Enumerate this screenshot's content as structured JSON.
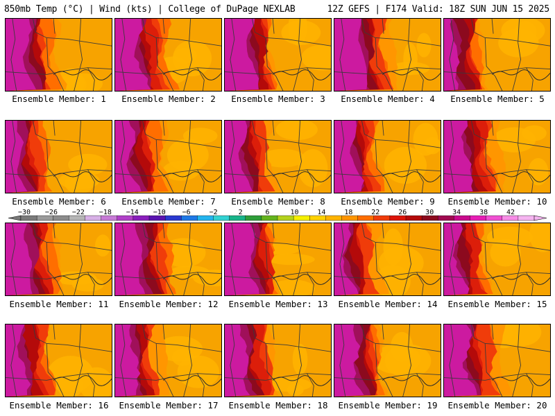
{
  "header": {
    "left": "850mb Temp (°C) | Wind (kts) | College of DuPage NEXLAB",
    "right": "12Z GEFS | F174 Valid: 18Z SUN JUN 15 2025"
  },
  "members": [
    "Ensemble Member: 1",
    "Ensemble Member: 2",
    "Ensemble Member: 3",
    "Ensemble Member: 4",
    "Ensemble Member: 5",
    "Ensemble Member: 6",
    "Ensemble Member: 7",
    "Ensemble Member: 8",
    "Ensemble Member: 9",
    "Ensemble Member: 10",
    "Ensemble Member: 11",
    "Ensemble Member: 12",
    "Ensemble Member: 13",
    "Ensemble Member: 14",
    "Ensemble Member: 15",
    "Ensemble Member: 16",
    "Ensemble Member: 17",
    "Ensemble Member: 18",
    "Ensemble Member: 19",
    "Ensemble Member: 20"
  ],
  "colorbar": {
    "labels": [
      "−30",
      "−26",
      "−22",
      "−18",
      "−14",
      "−10",
      "−6",
      "−2",
      "2",
      "6",
      "10",
      "14",
      "18",
      "22",
      "26",
      "30",
      "34",
      "38",
      "42"
    ],
    "colors": [
      "#7a7a7a",
      "#9a9a9a",
      "#8c8c8c",
      "#b5b5b5",
      "#d7b0e6",
      "#c77ad6",
      "#b040c8",
      "#8a1fbc",
      "#5a14b0",
      "#2a3ad0",
      "#1e78e6",
      "#24b4ee",
      "#32d2d2",
      "#18b48a",
      "#2e9e3a",
      "#64b41e",
      "#b4d21e",
      "#f5f000",
      "#ffd200",
      "#ffb400",
      "#ff9600",
      "#ff6e00",
      "#f03c0a",
      "#dc140a",
      "#b40a0a",
      "#8c0a1e",
      "#a00a50",
      "#c80a8c",
      "#e61eb4",
      "#f050d2",
      "#f78ce6",
      "#f5b4f0"
    ]
  }
}
